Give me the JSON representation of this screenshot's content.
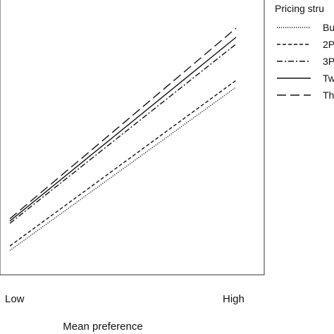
{
  "chart_data": {
    "type": "line",
    "title": "",
    "xlabel": "Mean preference",
    "ylabel": "",
    "x_ticks": [
      "Low",
      "High"
    ],
    "xlim": [
      0,
      1
    ],
    "ylim": [
      0,
      1
    ],
    "grid": false,
    "legend": {
      "title": "Pricing stru",
      "placement": "top-right"
    },
    "series": [
      {
        "name": "Bu",
        "style": "dotted",
        "x": [
          0,
          1
        ],
        "y": [
          0.02,
          0.74
        ]
      },
      {
        "name": "2P",
        "style": "dashed",
        "x": [
          0,
          1
        ],
        "y": [
          0.04,
          0.77
        ]
      },
      {
        "name": "3P",
        "style": "dash-dot",
        "x": [
          0,
          1
        ],
        "y": [
          0.14,
          0.93
        ]
      },
      {
        "name": "Tw",
        "style": "solid",
        "x": [
          0,
          1
        ],
        "y": [
          0.15,
          0.96
        ]
      },
      {
        "name": "Th",
        "style": "long-dash",
        "x": [
          0,
          1
        ],
        "y": [
          0.16,
          1.0
        ]
      }
    ]
  }
}
